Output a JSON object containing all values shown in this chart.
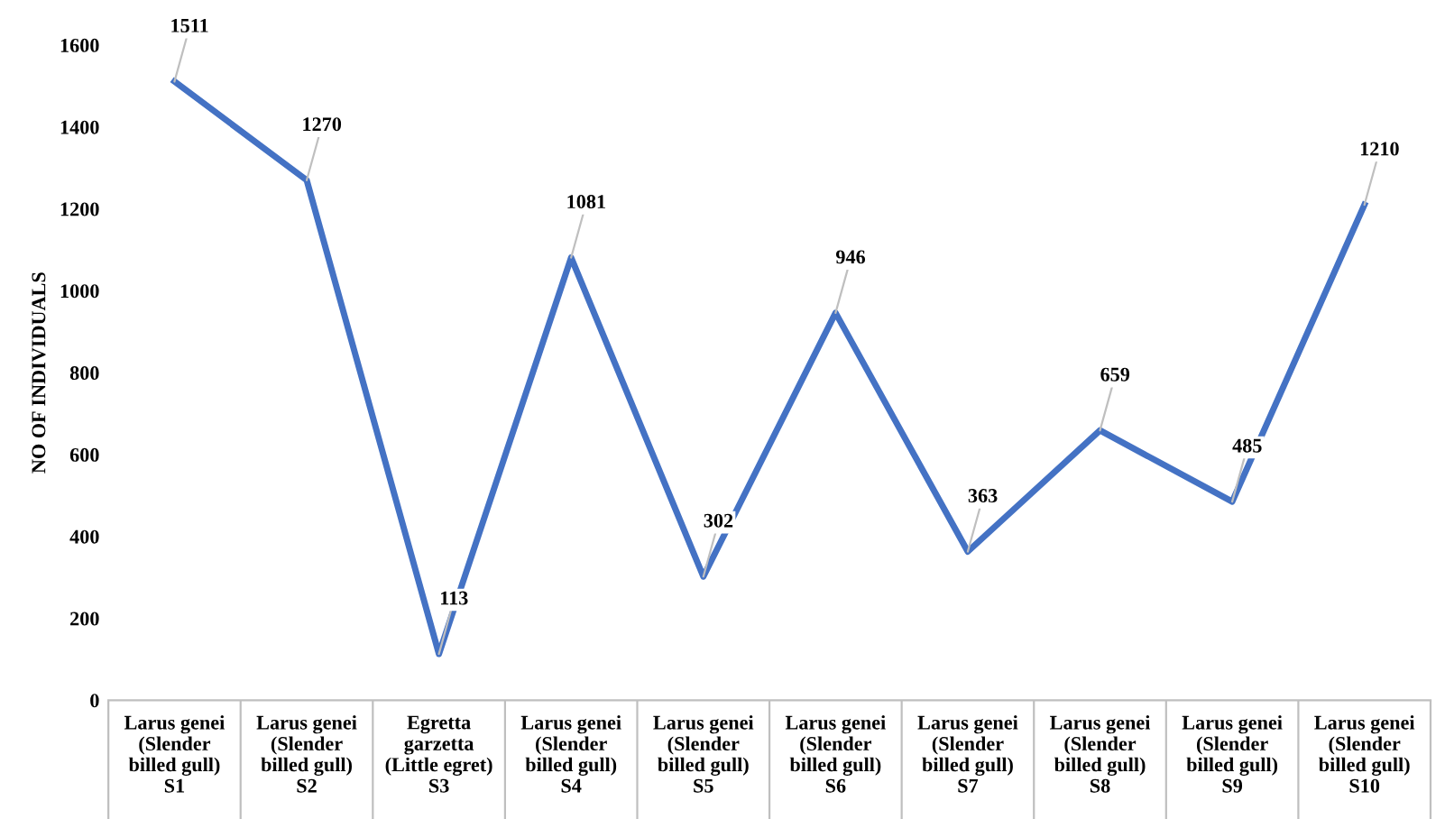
{
  "chart_data": {
    "type": "line",
    "ylabel": "NO OF INDIVIDUALS",
    "categories": [
      "Larus genei\n(Slender\nbilled gull)\nS1",
      "Larus genei\n(Slender\nbilled gull)\nS2",
      "Egretta\ngarzetta\n(Little egret)\nS3",
      "Larus genei\n(Slender\nbilled gull)\nS4",
      "Larus genei\n(Slender\nbilled gull)\nS5",
      "Larus genei\n(Slender\nbilled gull)\nS6",
      "Larus genei\n(Slender\nbilled gull)\nS7",
      "Larus genei\n(Slender\nbilled gull)\nS8",
      "Larus genei\n(Slender\nbilled gull)\nS9",
      "Larus genei\n(Slender\nbilled gull)\nS10"
    ],
    "series": [
      {
        "color": "#4472c4",
        "values": [
          1511,
          1270,
          113,
          1081,
          302,
          946,
          363,
          659,
          485,
          1210
        ]
      }
    ],
    "ylim": [
      0,
      1600
    ],
    "yticks": [
      0,
      200,
      400,
      600,
      800,
      1000,
      1200,
      1400,
      1600
    ],
    "grid": false,
    "legend": false,
    "marker": "none",
    "line_style": "solid",
    "data_labels": true
  }
}
